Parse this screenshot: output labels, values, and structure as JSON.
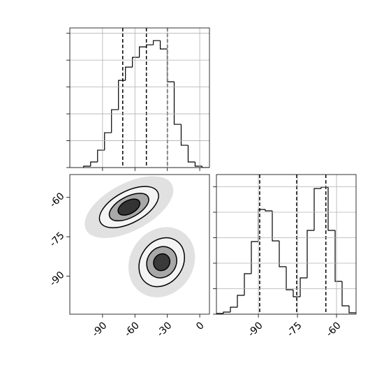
{
  "chart_data": [
    {
      "type": "histogram",
      "bins": [
        -107.5,
        -101.05,
        -94.6,
        -88.15,
        -81.7,
        -75.25,
        -68.8,
        -62.35,
        -55.9,
        -49.45,
        -43.0,
        -36.55,
        -30.1,
        -23.65,
        -17.2,
        -10.75,
        -4.3,
        2.15,
        8.6
      ],
      "counts": [
        52,
        208,
        649,
        1299,
        2156,
        3247,
        3740,
        4104,
        4494,
        4571,
        4727,
        4416,
        3195,
        1610,
        831,
        208,
        52,
        0
      ],
      "quantiles": [
        -71.3,
        -49.4,
        -30
      ],
      "xlim": [
        -120.3,
        9
      ],
      "xticks": [
        -90,
        -60,
        -30,
        0
      ],
      "ylim": [
        0,
        5200
      ],
      "yticks": [
        0,
        1000,
        2000,
        3000,
        4000,
        5000
      ],
      "grid": true,
      "show_xtick_labels": false,
      "show_ytick_labels": false,
      "color": "#000000"
    },
    {
      "type": "density",
      "xlim": [
        -120.3,
        9
      ],
      "xticks": [
        -90,
        -60,
        -30,
        0
      ],
      "ylim": [
        -104.5,
        -51.3
      ],
      "yticks": [
        -60,
        -75,
        -90
      ],
      "grid": false,
      "show_xtick_labels": true,
      "show_ytick_labels": true,
      "clouds": [
        {
          "cx": -65.5,
          "cy": -63.7,
          "rx": 45,
          "ry": 9,
          "angle": -28
        },
        {
          "cx": -35.2,
          "cy": -84.7,
          "rx": 34,
          "ry": 12,
          "angle": -55
        }
      ],
      "contours": [
        {
          "cx": -65.5,
          "cy": -63.7,
          "rx": 30,
          "ry": 6,
          "angle": -28,
          "fill": "#f4f4f4"
        },
        {
          "cx": -65.5,
          "cy": -63.7,
          "rx": 20,
          "ry": 4,
          "angle": -28,
          "fill": "#a8a8a8"
        },
        {
          "cx": -65.5,
          "cy": -63.7,
          "rx": 11,
          "ry": 2.5,
          "angle": -28,
          "fill": "#333333"
        },
        {
          "cx": -35.2,
          "cy": -84.7,
          "rx": 24,
          "ry": 8,
          "angle": -55,
          "fill": "#f4f4f4"
        },
        {
          "cx": -35.2,
          "cy": -84.7,
          "rx": 15,
          "ry": 5.5,
          "angle": -55,
          "fill": "#a8a8a8"
        },
        {
          "cx": -35.2,
          "cy": -84.7,
          "rx": 8,
          "ry": 3,
          "angle": -55,
          "fill": "#3a3a3a"
        }
      ]
    },
    {
      "type": "histogram",
      "bins": [
        -106.1,
        -103.42,
        -100.74,
        -98.06,
        -95.38,
        -92.7,
        -90.02,
        -87.34,
        -84.66,
        -81.98,
        -79.3,
        -76.62,
        -73.94,
        -71.26,
        -68.58,
        -65.9,
        -63.22,
        -60.54,
        -57.86,
        -55.18,
        -52.5
      ],
      "counts": [
        27,
        82,
        274,
        740,
        1589,
        2849,
        4110,
        4055,
        2877,
        1863,
        959,
        685,
        1425,
        3288,
        4932,
        4986,
        3288,
        1288,
        329,
        55
      ],
      "quantiles": [
        -89.5,
        -75.3,
        -64.1
      ],
      "xlim": [
        -106.1,
        -52.5
      ],
      "xticks": [
        -90,
        -75,
        -60
      ],
      "ylim": [
        0,
        5479
      ],
      "yticks": [
        0,
        1000,
        2000,
        3000,
        4000,
        5000
      ],
      "grid": true,
      "show_xtick_labels": true,
      "show_ytick_labels": false,
      "color": "#000000"
    }
  ]
}
